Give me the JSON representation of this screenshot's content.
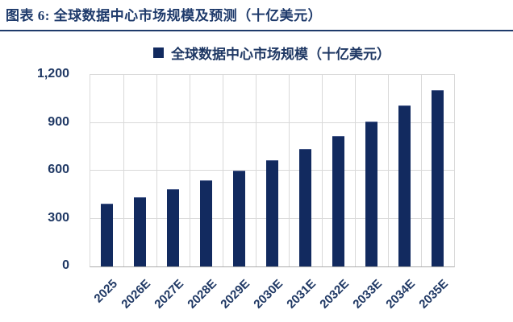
{
  "header": {
    "title": "图表 6: 全球数据中心市场规模及预测（十亿美元）"
  },
  "legend": {
    "label": "全球数据中心市场规模（十亿美元）"
  },
  "chart_data": {
    "type": "bar",
    "title": "全球数据中心市场规模（十亿美元）",
    "categories": [
      "2025",
      "2026E",
      "2027E",
      "2028E",
      "2029E",
      "2030E",
      "2031E",
      "2032E",
      "2033E",
      "2034E",
      "2035E"
    ],
    "values": [
      390,
      430,
      480,
      535,
      595,
      660,
      730,
      810,
      900,
      1005,
      1100
    ],
    "xlabel": "",
    "ylabel": "",
    "ylim": [
      0,
      1200
    ],
    "yticks": [
      0,
      300,
      600,
      900,
      1200
    ],
    "ytick_labels": [
      "0",
      "300",
      "600",
      "900",
      "1,200"
    ],
    "grid": true,
    "legend_position": "top"
  },
  "colors": {
    "bar": "#122A5F",
    "navy_text": "#1F3864",
    "title_navy": "#1E3A6B",
    "gridline": "#D9D9D9",
    "axis_line": "#ADADAD",
    "background": "#FFFFFF"
  }
}
